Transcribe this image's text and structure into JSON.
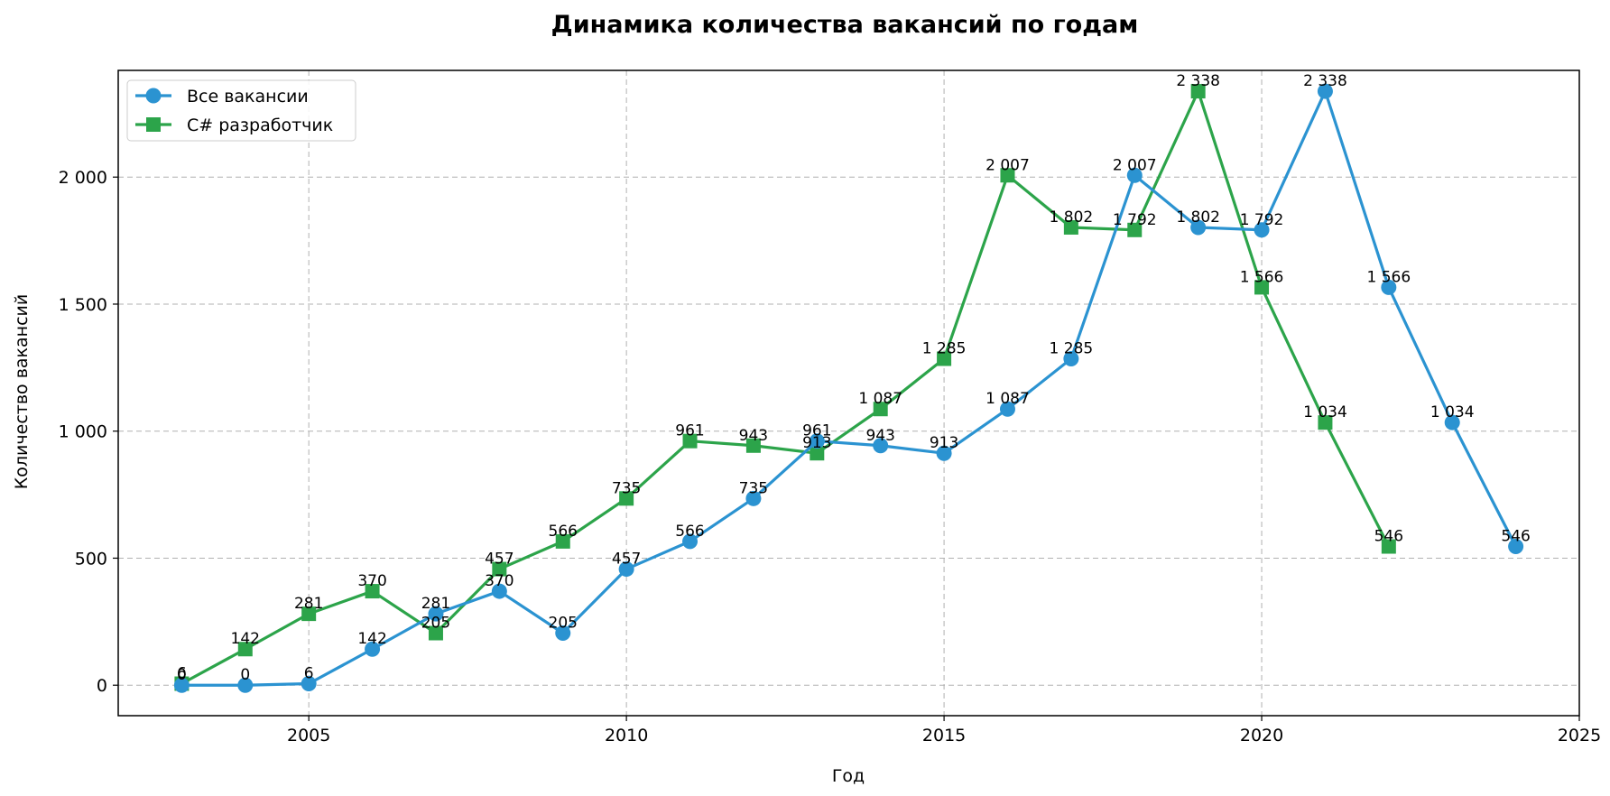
{
  "chart_data": {
    "type": "line",
    "title": "Динамика количества вакансий по годам",
    "xlabel": "Год",
    "ylabel": "Количество вакансий",
    "xlim": [
      2002,
      2025
    ],
    "ylim": [
      -120,
      2420
    ],
    "xticks": [
      2005,
      2010,
      2015,
      2020,
      2025
    ],
    "xtick_labels": [
      "2005",
      "2010",
      "2015",
      "2020",
      "2025"
    ],
    "yticks": [
      0,
      500,
      1000,
      1500,
      2000
    ],
    "ytick_labels": [
      "0",
      "500",
      "1 000",
      "1 500",
      "2 000"
    ],
    "grid": true,
    "legend_position": "top-left",
    "series": [
      {
        "name": "Все вакансии",
        "color": "#2b93d1",
        "marker": "circle",
        "x": [
          2003,
          2004,
          2005,
          2006,
          2007,
          2008,
          2009,
          2010,
          2011,
          2012,
          2013,
          2014,
          2015,
          2016,
          2017,
          2018,
          2019,
          2020,
          2021,
          2022,
          2023,
          2024
        ],
        "values": [
          0,
          0,
          6,
          142,
          281,
          370,
          205,
          457,
          566,
          735,
          961,
          943,
          913,
          1087,
          1285,
          2007,
          1802,
          1792,
          2338,
          1566,
          1034,
          546
        ],
        "labels": [
          "0",
          "0",
          "6",
          "142",
          "281",
          "370",
          "205",
          "457",
          "566",
          "735",
          "961",
          "943",
          "913",
          "1 087",
          "1 285",
          "2 007",
          "1 802",
          "1 792",
          "2 338",
          "1 566",
          "1 034",
          "546"
        ]
      },
      {
        "name": "C# разработчик",
        "color": "#2ca44a",
        "marker": "square",
        "x": [
          2003,
          2004,
          2005,
          2006,
          2007,
          2008,
          2009,
          2010,
          2011,
          2012,
          2013,
          2014,
          2015,
          2016,
          2017,
          2018,
          2019,
          2020,
          2021,
          2022
        ],
        "values": [
          6,
          142,
          281,
          370,
          205,
          457,
          566,
          735,
          961,
          943,
          913,
          1087,
          1285,
          2007,
          1802,
          1792,
          2338,
          1566,
          1034,
          546
        ],
        "labels": [
          "6",
          "142",
          "281",
          "370",
          "205",
          "457",
          "566",
          "735",
          "961",
          "943",
          "913",
          "1 087",
          "1 285",
          "2 007",
          "1 802",
          "1 792",
          "2 338",
          "1 566",
          "1 034",
          "546"
        ]
      }
    ]
  }
}
